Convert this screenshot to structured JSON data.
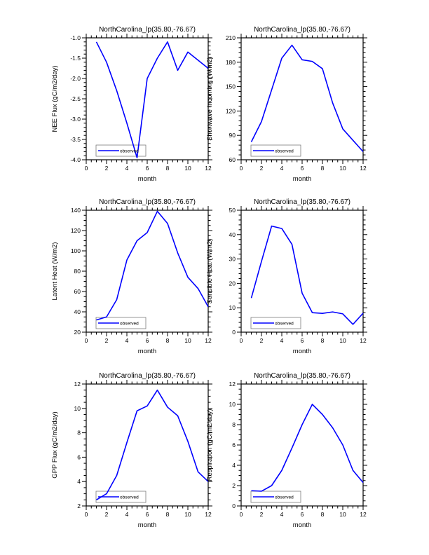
{
  "figure": {
    "background": "#ffffff",
    "line_color": "#0000ff",
    "legend_label": "observed",
    "legend_position": "lower-left",
    "panel_title": "NorthCarolina_lp(35.80,-76.67)",
    "xlabel": "month"
  },
  "chart_data": [
    {
      "type": "line",
      "id": "nee-flux",
      "title": "NorthCarolina_lp(35.80,-76.67)",
      "xlabel": "month",
      "ylabel": "NEE Flux (gC/m2/day)",
      "x": [
        1,
        2,
        3,
        4,
        5,
        6,
        7,
        8,
        9,
        10,
        11,
        12
      ],
      "series": [
        {
          "name": "observed",
          "color": "#0000ff",
          "values": [
            -1.1,
            -1.6,
            -2.3,
            -3.1,
            -3.95,
            -2.0,
            -1.5,
            -1.1,
            -1.8,
            -1.35,
            -1.55,
            -1.75
          ]
        }
      ],
      "xlim": [
        0,
        12
      ],
      "ylim": [
        -4.0,
        -1.0
      ],
      "x_tick_step": 2,
      "x_minor_divs": 4,
      "y_tick_step": 0.5,
      "y_minor_divs": 5,
      "y_tick_decimals": 1,
      "grid": false,
      "legend": "observed",
      "legend_position": "lower-left"
    },
    {
      "type": "line",
      "id": "shortwave-incoming",
      "title": "NorthCarolina_lp(35.80,-76.67)",
      "xlabel": "month",
      "ylabel": "Shortwave Incoming (W/m2)",
      "x": [
        1,
        2,
        3,
        4,
        5,
        6,
        7,
        8,
        9,
        10,
        11,
        12
      ],
      "series": [
        {
          "name": "observed",
          "color": "#0000ff",
          "values": [
            82,
            107,
            146,
            185,
            201,
            183,
            181,
            172,
            130,
            98,
            84,
            70
          ]
        }
      ],
      "xlim": [
        0,
        12
      ],
      "ylim": [
        60,
        210
      ],
      "x_tick_step": 2,
      "x_minor_divs": 4,
      "y_tick_step": 30,
      "y_minor_divs": 5,
      "y_tick_decimals": 0,
      "grid": false,
      "legend": "observed",
      "legend_position": "lower-left"
    },
    {
      "type": "line",
      "id": "latent-heat",
      "title": "NorthCarolina_lp(35.80,-76.67)",
      "xlabel": "month",
      "ylabel": "Latent Heat (W/m2)",
      "x": [
        1,
        2,
        3,
        4,
        5,
        6,
        7,
        8,
        9,
        10,
        11,
        12
      ],
      "series": [
        {
          "name": "observed",
          "color": "#0000ff",
          "values": [
            32,
            35,
            52,
            91,
            110,
            118,
            139,
            127,
            98,
            74,
            63,
            45
          ]
        }
      ],
      "xlim": [
        0,
        12
      ],
      "ylim": [
        20,
        140
      ],
      "x_tick_step": 2,
      "x_minor_divs": 4,
      "y_tick_step": 20,
      "y_minor_divs": 4,
      "y_tick_decimals": 0,
      "grid": false,
      "legend": "observed",
      "legend_position": "lower-left"
    },
    {
      "type": "line",
      "id": "sensible-heat",
      "title": "NorthCarolina_lp(35.80,-76.67)",
      "xlabel": "month",
      "ylabel": "Sensible Heat (W/m2)",
      "x": [
        1,
        2,
        3,
        4,
        5,
        6,
        7,
        8,
        9,
        10,
        11,
        12
      ],
      "series": [
        {
          "name": "observed",
          "color": "#0000ff",
          "values": [
            14,
            29,
            43.5,
            42.5,
            36,
            16,
            8,
            7.7,
            8.3,
            7.5,
            3.2,
            7.8
          ]
        }
      ],
      "xlim": [
        0,
        12
      ],
      "ylim": [
        0,
        50
      ],
      "x_tick_step": 2,
      "x_minor_divs": 4,
      "y_tick_step": 10,
      "y_minor_divs": 5,
      "y_tick_decimals": 0,
      "grid": false,
      "legend": "observed",
      "legend_position": "lower-left"
    },
    {
      "type": "line",
      "id": "gpp-flux",
      "title": "NorthCarolina_lp(35.80,-76.67)",
      "xlabel": "month",
      "ylabel": "GPP Flux (gC/m2/day)",
      "x": [
        1,
        2,
        3,
        4,
        5,
        6,
        7,
        8,
        9,
        10,
        11,
        12
      ],
      "series": [
        {
          "name": "observed",
          "color": "#0000ff",
          "values": [
            2.5,
            3.0,
            4.5,
            7.2,
            9.8,
            10.2,
            11.5,
            10.1,
            9.4,
            7.3,
            4.8,
            4.0
          ]
        }
      ],
      "xlim": [
        0,
        12
      ],
      "ylim": [
        2,
        12
      ],
      "x_tick_step": 2,
      "x_minor_divs": 4,
      "y_tick_step": 2,
      "y_minor_divs": 4,
      "y_tick_decimals": 0,
      "grid": false,
      "legend": "observed",
      "legend_position": "lower-left"
    },
    {
      "type": "line",
      "id": "respiration",
      "title": "NorthCarolina_lp(35.80,-76.67)",
      "xlabel": "month",
      "ylabel": "Respiration (gC/m2/day)",
      "x": [
        1,
        2,
        3,
        4,
        5,
        6,
        7,
        8,
        9,
        10,
        11,
        12
      ],
      "series": [
        {
          "name": "observed",
          "color": "#0000ff",
          "values": [
            1.5,
            1.45,
            2.0,
            3.5,
            5.7,
            8.0,
            10.0,
            9.0,
            7.7,
            6.0,
            3.5,
            2.3
          ]
        }
      ],
      "xlim": [
        0,
        12
      ],
      "ylim": [
        0,
        12
      ],
      "x_tick_step": 2,
      "x_minor_divs": 4,
      "y_tick_step": 2,
      "y_minor_divs": 4,
      "y_tick_decimals": 0,
      "grid": false,
      "legend": "observed",
      "legend_position": "lower-left"
    }
  ]
}
